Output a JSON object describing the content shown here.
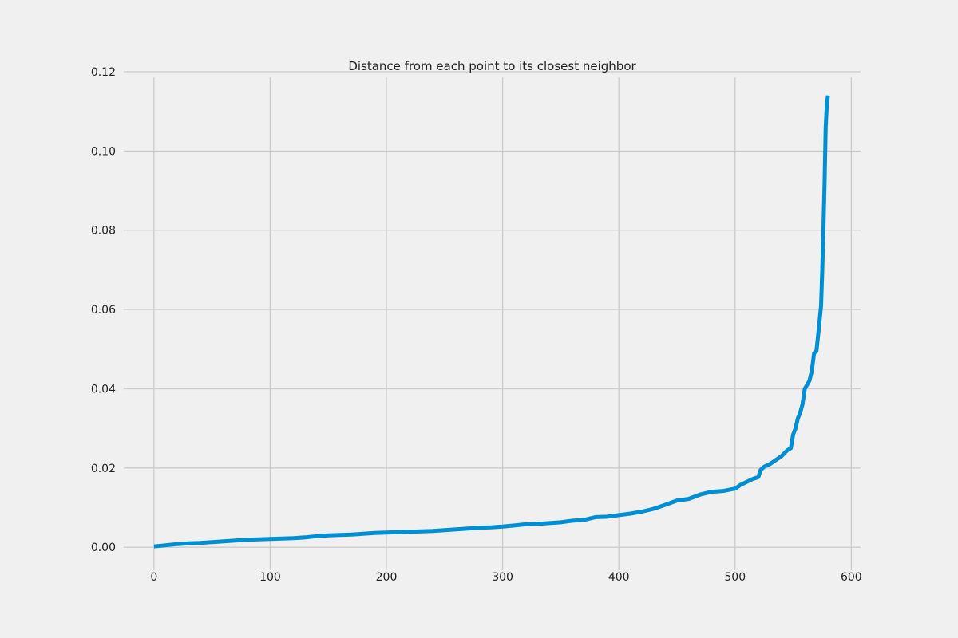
{
  "chart_data": {
    "type": "line",
    "title": "Distance from each point to its closest neighbor",
    "xlabel": "",
    "ylabel": "",
    "xlim": [
      -26,
      608
    ],
    "ylim": [
      -0.0058,
      0.12
    ],
    "grid": true,
    "x_ticks": [
      0,
      100,
      200,
      300,
      400,
      500,
      600
    ],
    "x_tick_labels": [
      "0",
      "100",
      "200",
      "300",
      "400",
      "500",
      "600"
    ],
    "y_ticks": [
      0.0,
      0.02,
      0.04,
      0.06,
      0.08,
      0.1,
      0.12
    ],
    "y_tick_labels": [
      "0.00",
      "0.02",
      "0.04",
      "0.06",
      "0.08",
      "0.10",
      "0.12"
    ],
    "series": [
      {
        "color": "#008fd5",
        "x": [
          0,
          10,
          20,
          30,
          40,
          50,
          60,
          70,
          80,
          90,
          100,
          110,
          120,
          130,
          140,
          150,
          160,
          170,
          180,
          190,
          200,
          210,
          220,
          230,
          240,
          250,
          260,
          270,
          280,
          290,
          300,
          310,
          320,
          330,
          340,
          350,
          360,
          370,
          380,
          390,
          400,
          410,
          420,
          430,
          440,
          450,
          460,
          470,
          480,
          490,
          500,
          505,
          510,
          515,
          520,
          522,
          525,
          530,
          535,
          540,
          545,
          548,
          550,
          552,
          554,
          556,
          558,
          560,
          562,
          564,
          566,
          568,
          570,
          572,
          574,
          575,
          576,
          577,
          578,
          579,
          580
        ],
        "y": [
          0.0002,
          0.0005,
          0.0008,
          0.001,
          0.0011,
          0.0013,
          0.0015,
          0.0017,
          0.0019,
          0.002,
          0.0021,
          0.0022,
          0.0023,
          0.0025,
          0.0028,
          0.003,
          0.0031,
          0.0032,
          0.0034,
          0.0036,
          0.0037,
          0.0038,
          0.0039,
          0.004,
          0.0041,
          0.0043,
          0.0045,
          0.0047,
          0.0049,
          0.005,
          0.0052,
          0.0055,
          0.0058,
          0.0059,
          0.0061,
          0.0063,
          0.0067,
          0.0069,
          0.0076,
          0.0077,
          0.0081,
          0.0085,
          0.009,
          0.0097,
          0.0107,
          0.0118,
          0.0122,
          0.0133,
          0.014,
          0.0142,
          0.0148,
          0.0158,
          0.0165,
          0.0172,
          0.0177,
          0.0195,
          0.0203,
          0.021,
          0.022,
          0.023,
          0.0245,
          0.025,
          0.0285,
          0.03,
          0.0325,
          0.034,
          0.036,
          0.04,
          0.041,
          0.042,
          0.0445,
          0.049,
          0.0495,
          0.055,
          0.061,
          0.07,
          0.08,
          0.092,
          0.106,
          0.112,
          0.114
        ],
        "line_width": 5
      }
    ]
  }
}
